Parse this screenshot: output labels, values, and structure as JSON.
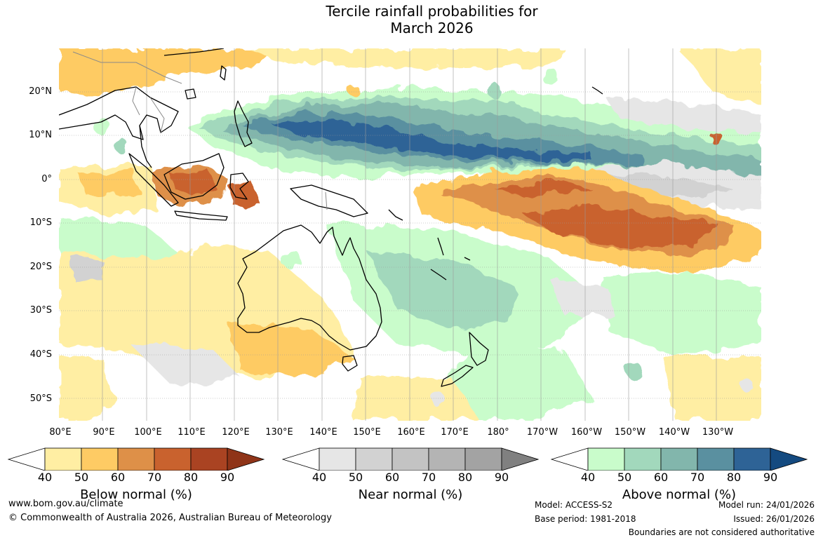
{
  "title": {
    "line1": "Tercile rainfall probabilities for",
    "line2": "March 2026"
  },
  "map": {
    "latitude_labels": [
      "20°N",
      "10°N",
      "0°",
      "10°S",
      "20°S",
      "30°S",
      "40°S",
      "50°S"
    ],
    "longitude_labels": [
      "80°E",
      "90°E",
      "100°E",
      "110°E",
      "120°E",
      "130°E",
      "140°E",
      "150°E",
      "160°E",
      "170°E",
      "180°",
      "170°W",
      "160°W",
      "150°W",
      "140°W",
      "130°W"
    ],
    "regions": [
      {
        "name": "above-normal-equatorial-band",
        "category": "above",
        "probability": 80
      },
      {
        "name": "below-normal-south-pacific",
        "category": "below",
        "probability": 70
      },
      {
        "name": "below-normal-borneo",
        "category": "below",
        "probability": 70
      },
      {
        "name": "near-normal-central-pacific",
        "category": "near",
        "probability": 50
      },
      {
        "name": "above-normal-coral-sea",
        "category": "above",
        "probability": 50
      },
      {
        "name": "below-normal-southern-australia",
        "category": "below",
        "probability": 50
      }
    ]
  },
  "legends": [
    {
      "label": "Below normal (%)",
      "ticks": [
        "40",
        "50",
        "60",
        "70",
        "80",
        "90"
      ],
      "colors": [
        "#ffffff",
        "#ffeea3",
        "#fecb64",
        "#de9048",
        "#c9622e",
        "#aa4322",
        "#8f3418"
      ]
    },
    {
      "label": "Near normal (%)",
      "ticks": [
        "40",
        "50",
        "60",
        "70",
        "80",
        "90"
      ],
      "colors": [
        "#ffffff",
        "#e6e6e6",
        "#d2d2d2",
        "#c3c3c3",
        "#b4b4b4",
        "#a3a3a3",
        "#808080"
      ]
    },
    {
      "label": "Above normal (%)",
      "ticks": [
        "40",
        "50",
        "60",
        "70",
        "80",
        "90"
      ],
      "colors": [
        "#ffffff",
        "#c9fccb",
        "#a2d8bc",
        "#82b6ac",
        "#5a90a0",
        "#2e6396",
        "#144a80"
      ]
    }
  ],
  "footer": {
    "website": "www.bom.gov.au/climate",
    "copyright": "© Commonwealth of Australia 2026, Australian Bureau of Meteorology",
    "model": "Model: ACCESS-S2",
    "base_period": "Base period: 1981-2018",
    "model_run": "Model run: 24/01/2026",
    "issued": "Issued: 26/01/2026",
    "disclaimer": "Boundaries are not considered authoritative"
  }
}
